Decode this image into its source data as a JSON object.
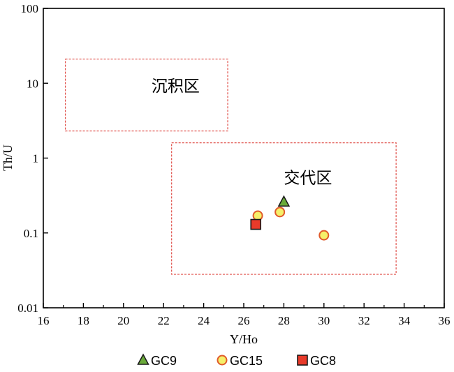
{
  "chart_data": {
    "type": "scatter",
    "title": "",
    "xlabel": "Y/Ho",
    "ylabel": "Th/U",
    "xlim": [
      16,
      36
    ],
    "ylim": [
      0.01,
      100
    ],
    "y_scale": "log",
    "grid": false,
    "x_ticks": [
      16,
      18,
      20,
      22,
      24,
      26,
      28,
      30,
      32,
      34,
      36
    ],
    "x_tick_labels": [
      "16",
      "18",
      "20",
      "22",
      "24",
      "26",
      "28",
      "30",
      "32",
      "34",
      "36"
    ],
    "y_ticks": [
      0.01,
      0.1,
      1,
      10,
      100
    ],
    "y_tick_labels": [
      "0.01",
      "0.1",
      "1",
      "10",
      "100"
    ],
    "regions": [
      {
        "label": "沉积区",
        "x_range": [
          17.1,
          25.2
        ],
        "y_range": [
          2.3,
          21
        ],
        "label_at": [
          22.6,
          9.2
        ],
        "style": "dashed",
        "color": "#e0504a"
      },
      {
        "label": "交代区",
        "x_range": [
          22.4,
          33.6
        ],
        "y_range": [
          0.028,
          1.6
        ],
        "label_at": [
          29.2,
          0.55
        ],
        "style": "dashed",
        "color": "#e0504a"
      }
    ],
    "series": [
      {
        "name": "GC9",
        "marker": "triangle",
        "fill": "#6aaa3a",
        "stroke": "#1a1a1a",
        "points": [
          {
            "x": 28.0,
            "y": 0.26
          }
        ]
      },
      {
        "name": "GC15",
        "marker": "circle",
        "fill": "#f5f06a",
        "stroke": "#e05a2a",
        "points": [
          {
            "x": 26.7,
            "y": 0.17
          },
          {
            "x": 27.8,
            "y": 0.19
          },
          {
            "x": 30.0,
            "y": 0.093
          }
        ]
      },
      {
        "name": "GC8",
        "marker": "square",
        "fill": "#e83a2a",
        "stroke": "#1a1a1a",
        "points": [
          {
            "x": 26.6,
            "y": 0.13
          }
        ]
      }
    ],
    "legend_position": "bottom-center"
  }
}
